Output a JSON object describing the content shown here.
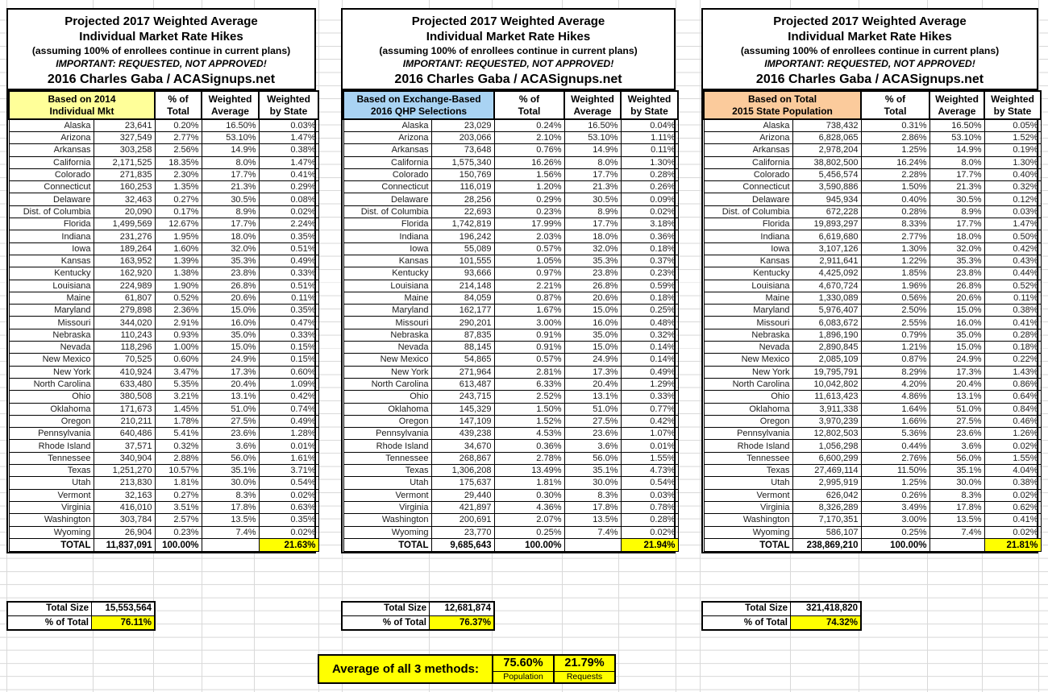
{
  "colors": {
    "basis_yellow": "#ffff99",
    "basis_blue": "#a9d3f3",
    "basis_orange": "#fbcb9c",
    "highlight_yellow": "#ffff00",
    "gridline_gray": "#d9d9d9"
  },
  "average": {
    "label": "Average of all 3 methods:",
    "population_value": "75.60%",
    "population_label": "Population",
    "requests_value": "21.79%",
    "requests_label": "Requests"
  },
  "tables": [
    {
      "title_line1": "Projected 2017 Weighted Average",
      "title_line2": "Individual Market Rate Hikes",
      "subtitle": "(assuming 100% of enrollees continue in current plans)",
      "warning": "IMPORTANT: REQUESTED, NOT APPROVED!",
      "credit": "2016 Charles Gaba / ACASignups.net",
      "basis_line1": "Based on 2014",
      "basis_line2": "Individual Mkt",
      "pct_header_line1": "% of",
      "pct_header_line2": "Total",
      "wavg_header_line1": "Weighted",
      "wavg_header_line2": "Average",
      "wstate_header_line1": "Weighted",
      "wstate_header_line2": "by State",
      "rows": [
        [
          "Alaska",
          "23,641",
          "0.20%",
          "16.50%",
          "0.03%"
        ],
        [
          "Arizona",
          "327,549",
          "2.77%",
          "53.10%",
          "1.47%"
        ],
        [
          "Arkansas",
          "303,258",
          "2.56%",
          "14.9%",
          "0.38%"
        ],
        [
          "California",
          "2,171,525",
          "18.35%",
          "8.0%",
          "1.47%"
        ],
        [
          "Colorado",
          "271,835",
          "2.30%",
          "17.7%",
          "0.41%"
        ],
        [
          "Connecticut",
          "160,253",
          "1.35%",
          "21.3%",
          "0.29%"
        ],
        [
          "Delaware",
          "32,463",
          "0.27%",
          "30.5%",
          "0.08%"
        ],
        [
          "Dist. of Columbia",
          "20,090",
          "0.17%",
          "8.9%",
          "0.02%"
        ],
        [
          "Florida",
          "1,499,569",
          "12.67%",
          "17.7%",
          "2.24%"
        ],
        [
          "Indiana",
          "231,276",
          "1.95%",
          "18.0%",
          "0.35%"
        ],
        [
          "Iowa",
          "189,264",
          "1.60%",
          "32.0%",
          "0.51%"
        ],
        [
          "Kansas",
          "163,952",
          "1.39%",
          "35.3%",
          "0.49%"
        ],
        [
          "Kentucky",
          "162,920",
          "1.38%",
          "23.8%",
          "0.33%"
        ],
        [
          "Louisiana",
          "224,989",
          "1.90%",
          "26.8%",
          "0.51%"
        ],
        [
          "Maine",
          "61,807",
          "0.52%",
          "20.6%",
          "0.11%"
        ],
        [
          "Maryland",
          "279,898",
          "2.36%",
          "15.0%",
          "0.35%"
        ],
        [
          "Missouri",
          "344,020",
          "2.91%",
          "16.0%",
          "0.47%"
        ],
        [
          "Nebraska",
          "110,243",
          "0.93%",
          "35.0%",
          "0.33%"
        ],
        [
          "Nevada",
          "118,296",
          "1.00%",
          "15.0%",
          "0.15%"
        ],
        [
          "New Mexico",
          "70,525",
          "0.60%",
          "24.9%",
          "0.15%"
        ],
        [
          "New York",
          "410,924",
          "3.47%",
          "17.3%",
          "0.60%"
        ],
        [
          "North Carolina",
          "633,480",
          "5.35%",
          "20.4%",
          "1.09%"
        ],
        [
          "Ohio",
          "380,508",
          "3.21%",
          "13.1%",
          "0.42%"
        ],
        [
          "Oklahoma",
          "171,673",
          "1.45%",
          "51.0%",
          "0.74%"
        ],
        [
          "Oregon",
          "210,211",
          "1.78%",
          "27.5%",
          "0.49%"
        ],
        [
          "Pennsylvania",
          "640,486",
          "5.41%",
          "23.6%",
          "1.28%"
        ],
        [
          "Rhode Island",
          "37,571",
          "0.32%",
          "3.6%",
          "0.01%"
        ],
        [
          "Tennessee",
          "340,904",
          "2.88%",
          "56.0%",
          "1.61%"
        ],
        [
          "Texas",
          "1,251,270",
          "10.57%",
          "35.1%",
          "3.71%"
        ],
        [
          "Utah",
          "213,830",
          "1.81%",
          "30.0%",
          "0.54%"
        ],
        [
          "Vermont",
          "32,163",
          "0.27%",
          "8.3%",
          "0.02%"
        ],
        [
          "Virginia",
          "416,010",
          "3.51%",
          "17.8%",
          "0.63%"
        ],
        [
          "Washington",
          "303,784",
          "2.57%",
          "13.5%",
          "0.35%"
        ],
        [
          "Wyoming",
          "26,904",
          "0.23%",
          "7.4%",
          "0.02%"
        ]
      ],
      "total_label": "TOTAL",
      "total_value": "11,837,091",
      "total_pct": "100.00%",
      "total_wavg": "",
      "total_wstate": "21.63%",
      "total_size_label": "Total Size",
      "total_size_value": "15,553,564",
      "pct_of_total_label": "% of Total",
      "pct_of_total_value": "76.11%"
    },
    {
      "title_line1": "Projected 2017 Weighted Average",
      "title_line2": "Individual Market Rate Hikes",
      "subtitle": "(assuming 100% of enrollees continue in current plans)",
      "warning": "IMPORTANT: REQUESTED, NOT APPROVED!",
      "credit": "2016 Charles Gaba / ACASignups.net",
      "basis_line1": "Based on Exchange-Based",
      "basis_line2": "2016 QHP Selections",
      "pct_header_line1": "% of",
      "pct_header_line2": "Total",
      "wavg_header_line1": "Weighted",
      "wavg_header_line2": "Average",
      "wstate_header_line1": "Weighted",
      "wstate_header_line2": "by State",
      "rows": [
        [
          "Alaska",
          "23,029",
          "0.24%",
          "16.50%",
          "0.04%"
        ],
        [
          "Arizona",
          "203,066",
          "2.10%",
          "53.10%",
          "1.11%"
        ],
        [
          "Arkansas",
          "73,648",
          "0.76%",
          "14.9%",
          "0.11%"
        ],
        [
          "California",
          "1,575,340",
          "16.26%",
          "8.0%",
          "1.30%"
        ],
        [
          "Colorado",
          "150,769",
          "1.56%",
          "17.7%",
          "0.28%"
        ],
        [
          "Connecticut",
          "116,019",
          "1.20%",
          "21.3%",
          "0.26%"
        ],
        [
          "Delaware",
          "28,256",
          "0.29%",
          "30.5%",
          "0.09%"
        ],
        [
          "Dist. of Columbia",
          "22,693",
          "0.23%",
          "8.9%",
          "0.02%"
        ],
        [
          "Florida",
          "1,742,819",
          "17.99%",
          "17.7%",
          "3.18%"
        ],
        [
          "Indiana",
          "196,242",
          "2.03%",
          "18.0%",
          "0.36%"
        ],
        [
          "Iowa",
          "55,089",
          "0.57%",
          "32.0%",
          "0.18%"
        ],
        [
          "Kansas",
          "101,555",
          "1.05%",
          "35.3%",
          "0.37%"
        ],
        [
          "Kentucky",
          "93,666",
          "0.97%",
          "23.8%",
          "0.23%"
        ],
        [
          "Louisiana",
          "214,148",
          "2.21%",
          "26.8%",
          "0.59%"
        ],
        [
          "Maine",
          "84,059",
          "0.87%",
          "20.6%",
          "0.18%"
        ],
        [
          "Maryland",
          "162,177",
          "1.67%",
          "15.0%",
          "0.25%"
        ],
        [
          "Missouri",
          "290,201",
          "3.00%",
          "16.0%",
          "0.48%"
        ],
        [
          "Nebraska",
          "87,835",
          "0.91%",
          "35.0%",
          "0.32%"
        ],
        [
          "Nevada",
          "88,145",
          "0.91%",
          "15.0%",
          "0.14%"
        ],
        [
          "New Mexico",
          "54,865",
          "0.57%",
          "24.9%",
          "0.14%"
        ],
        [
          "New York",
          "271,964",
          "2.81%",
          "17.3%",
          "0.49%"
        ],
        [
          "North Carolina",
          "613,487",
          "6.33%",
          "20.4%",
          "1.29%"
        ],
        [
          "Ohio",
          "243,715",
          "2.52%",
          "13.1%",
          "0.33%"
        ],
        [
          "Oklahoma",
          "145,329",
          "1.50%",
          "51.0%",
          "0.77%"
        ],
        [
          "Oregon",
          "147,109",
          "1.52%",
          "27.5%",
          "0.42%"
        ],
        [
          "Pennsylvania",
          "439,238",
          "4.53%",
          "23.6%",
          "1.07%"
        ],
        [
          "Rhode Island",
          "34,670",
          "0.36%",
          "3.6%",
          "0.01%"
        ],
        [
          "Tennessee",
          "268,867",
          "2.78%",
          "56.0%",
          "1.55%"
        ],
        [
          "Texas",
          "1,306,208",
          "13.49%",
          "35.1%",
          "4.73%"
        ],
        [
          "Utah",
          "175,637",
          "1.81%",
          "30.0%",
          "0.54%"
        ],
        [
          "Vermont",
          "29,440",
          "0.30%",
          "8.3%",
          "0.03%"
        ],
        [
          "Virginia",
          "421,897",
          "4.36%",
          "17.8%",
          "0.78%"
        ],
        [
          "Washington",
          "200,691",
          "2.07%",
          "13.5%",
          "0.28%"
        ],
        [
          "Wyoming",
          "23,770",
          "0.25%",
          "7.4%",
          "0.02%"
        ]
      ],
      "total_label": "TOTAL",
      "total_value": "9,685,643",
      "total_pct": "100.00%",
      "total_wavg": "",
      "total_wstate": "21.94%",
      "total_size_label": "Total Size",
      "total_size_value": "12,681,874",
      "pct_of_total_label": "% of Total",
      "pct_of_total_value": "76.37%"
    },
    {
      "title_line1": "Projected 2017 Weighted Average",
      "title_line2": "Individual Market Rate Hikes",
      "subtitle": "(assuming 100% of enrollees continue in current plans)",
      "warning": "IMPORTANT: REQUESTED, NOT APPROVED!",
      "credit": "2016 Charles Gaba / ACASignups.net",
      "basis_line1": "Based on Total",
      "basis_line2": "2015 State Population",
      "pct_header_line1": "% of",
      "pct_header_line2": "Total",
      "wavg_header_line1": "Weighted",
      "wavg_header_line2": "Average",
      "wstate_header_line1": "Weighted",
      "wstate_header_line2": "by State",
      "rows": [
        [
          "Alaska",
          "738,432",
          "0.31%",
          "16.50%",
          "0.05%"
        ],
        [
          "Arizona",
          "6,828,065",
          "2.86%",
          "53.10%",
          "1.52%"
        ],
        [
          "Arkansas",
          "2,978,204",
          "1.25%",
          "14.9%",
          "0.19%"
        ],
        [
          "California",
          "38,802,500",
          "16.24%",
          "8.0%",
          "1.30%"
        ],
        [
          "Colorado",
          "5,456,574",
          "2.28%",
          "17.7%",
          "0.40%"
        ],
        [
          "Connecticut",
          "3,590,886",
          "1.50%",
          "21.3%",
          "0.32%"
        ],
        [
          "Delaware",
          "945,934",
          "0.40%",
          "30.5%",
          "0.12%"
        ],
        [
          "Dist. of Columbia",
          "672,228",
          "0.28%",
          "8.9%",
          "0.03%"
        ],
        [
          "Florida",
          "19,893,297",
          "8.33%",
          "17.7%",
          "1.47%"
        ],
        [
          "Indiana",
          "6,619,680",
          "2.77%",
          "18.0%",
          "0.50%"
        ],
        [
          "Iowa",
          "3,107,126",
          "1.30%",
          "32.0%",
          "0.42%"
        ],
        [
          "Kansas",
          "2,911,641",
          "1.22%",
          "35.3%",
          "0.43%"
        ],
        [
          "Kentucky",
          "4,425,092",
          "1.85%",
          "23.8%",
          "0.44%"
        ],
        [
          "Louisiana",
          "4,670,724",
          "1.96%",
          "26.8%",
          "0.52%"
        ],
        [
          "Maine",
          "1,330,089",
          "0.56%",
          "20.6%",
          "0.11%"
        ],
        [
          "Maryland",
          "5,976,407",
          "2.50%",
          "15.0%",
          "0.38%"
        ],
        [
          "Missouri",
          "6,083,672",
          "2.55%",
          "16.0%",
          "0.41%"
        ],
        [
          "Nebraska",
          "1,896,190",
          "0.79%",
          "35.0%",
          "0.28%"
        ],
        [
          "Nevada",
          "2,890,845",
          "1.21%",
          "15.0%",
          "0.18%"
        ],
        [
          "New Mexico",
          "2,085,109",
          "0.87%",
          "24.9%",
          "0.22%"
        ],
        [
          "New York",
          "19,795,791",
          "8.29%",
          "17.3%",
          "1.43%"
        ],
        [
          "North Carolina",
          "10,042,802",
          "4.20%",
          "20.4%",
          "0.86%"
        ],
        [
          "Ohio",
          "11,613,423",
          "4.86%",
          "13.1%",
          "0.64%"
        ],
        [
          "Oklahoma",
          "3,911,338",
          "1.64%",
          "51.0%",
          "0.84%"
        ],
        [
          "Oregon",
          "3,970,239",
          "1.66%",
          "27.5%",
          "0.46%"
        ],
        [
          "Pennsylvania",
          "12,802,503",
          "5.36%",
          "23.6%",
          "1.26%"
        ],
        [
          "Rhode Island",
          "1,056,298",
          "0.44%",
          "3.6%",
          "0.02%"
        ],
        [
          "Tennessee",
          "6,600,299",
          "2.76%",
          "56.0%",
          "1.55%"
        ],
        [
          "Texas",
          "27,469,114",
          "11.50%",
          "35.1%",
          "4.04%"
        ],
        [
          "Utah",
          "2,995,919",
          "1.25%",
          "30.0%",
          "0.38%"
        ],
        [
          "Vermont",
          "626,042",
          "0.26%",
          "8.3%",
          "0.02%"
        ],
        [
          "Virginia",
          "8,326,289",
          "3.49%",
          "17.8%",
          "0.62%"
        ],
        [
          "Washington",
          "7,170,351",
          "3.00%",
          "13.5%",
          "0.41%"
        ],
        [
          "Wyoming",
          "586,107",
          "0.25%",
          "7.4%",
          "0.02%"
        ]
      ],
      "total_label": "TOTAL",
      "total_value": "238,869,210",
      "total_pct": "100.00%",
      "total_wavg": "",
      "total_wstate": "21.81%",
      "total_size_label": "Total Size",
      "total_size_value": "321,418,820",
      "pct_of_total_label": "% of Total",
      "pct_of_total_value": "74.32%"
    }
  ]
}
